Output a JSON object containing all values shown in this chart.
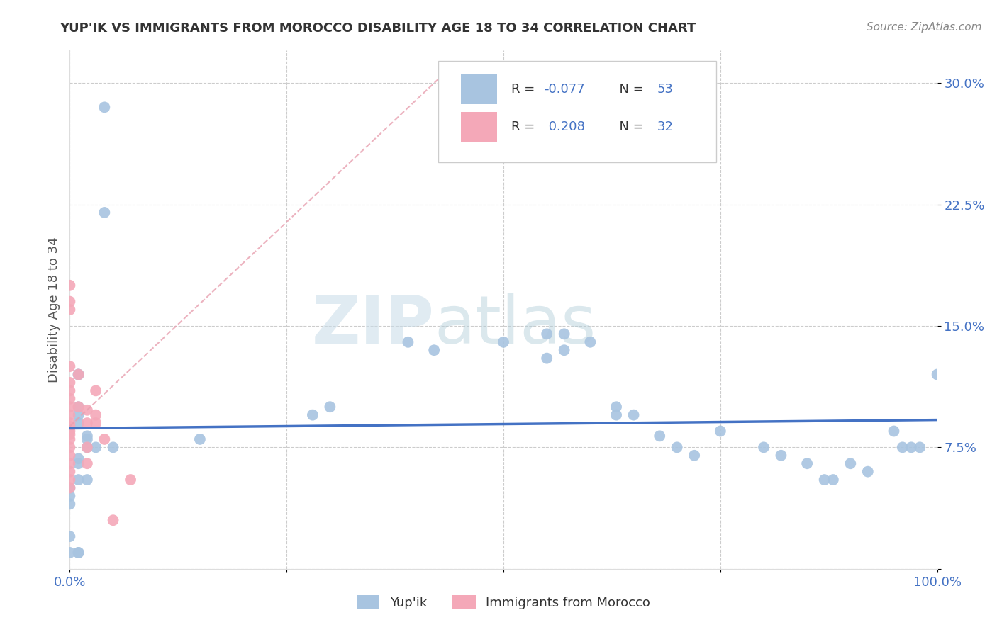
{
  "title": "YUP'IK VS IMMIGRANTS FROM MOROCCO DISABILITY AGE 18 TO 34 CORRELATION CHART",
  "source": "Source: ZipAtlas.com",
  "ylabel": "Disability Age 18 to 34",
  "xlim": [
    0.0,
    1.0
  ],
  "ylim": [
    0.0,
    0.32
  ],
  "xticks": [
    0.0,
    0.25,
    0.5,
    0.75,
    1.0
  ],
  "xtick_labels": [
    "0.0%",
    "",
    "",
    "",
    "100.0%"
  ],
  "ytick_labels": [
    "",
    "7.5%",
    "15.0%",
    "22.5%",
    "30.0%"
  ],
  "yticks": [
    0.0,
    0.075,
    0.15,
    0.225,
    0.3
  ],
  "grid_color": "#cccccc",
  "background_color": "#ffffff",
  "series1_color": "#a8c4e0",
  "series2_color": "#f4a8b8",
  "series1_label": "Yup'ik",
  "series2_label": "Immigrants from Morocco",
  "series1_R": "-0.077",
  "series1_N": "53",
  "series2_R": "0.208",
  "series2_N": "32",
  "label_color": "#4472c4",
  "trendline1_color": "#4472c4",
  "trendline2_color": "#e8a0b0",
  "watermark_color": "#d8e8f0",
  "series1_x": [
    0.04,
    0.04,
    0.01,
    0.01,
    0.01,
    0.01,
    0.01,
    0.02,
    0.02,
    0.03,
    0.05,
    0.15,
    0.02,
    0.01,
    0.01,
    0.01,
    0.02,
    0.0,
    0.0,
    0.0,
    0.0,
    0.0,
    0.01,
    0.01,
    0.39,
    0.42,
    0.5,
    0.55,
    0.57,
    0.6,
    0.63,
    0.65,
    0.68,
    0.7,
    0.72,
    0.75,
    0.8,
    0.82,
    0.85,
    0.87,
    0.9,
    0.92,
    0.95,
    0.97,
    0.98,
    1.0,
    0.55,
    0.57,
    0.28,
    0.3,
    0.63,
    0.88,
    0.96
  ],
  "series1_y": [
    0.285,
    0.22,
    0.12,
    0.12,
    0.1,
    0.095,
    0.09,
    0.082,
    0.08,
    0.075,
    0.075,
    0.08,
    0.075,
    0.068,
    0.065,
    0.055,
    0.055,
    0.05,
    0.045,
    0.04,
    0.02,
    0.01,
    0.01,
    0.01,
    0.14,
    0.135,
    0.14,
    0.145,
    0.135,
    0.14,
    0.1,
    0.095,
    0.082,
    0.075,
    0.07,
    0.085,
    0.075,
    0.07,
    0.065,
    0.055,
    0.065,
    0.06,
    0.085,
    0.075,
    0.075,
    0.12,
    0.13,
    0.145,
    0.095,
    0.1,
    0.095,
    0.055,
    0.075
  ],
  "series2_x": [
    0.0,
    0.0,
    0.0,
    0.0,
    0.0,
    0.0,
    0.0,
    0.0,
    0.0,
    0.0,
    0.0,
    0.0,
    0.0,
    0.0,
    0.0,
    0.0,
    0.0,
    0.0,
    0.0,
    0.0,
    0.01,
    0.01,
    0.02,
    0.02,
    0.03,
    0.03,
    0.03,
    0.04,
    0.05,
    0.07,
    0.02,
    0.02
  ],
  "series2_y": [
    0.175,
    0.165,
    0.16,
    0.125,
    0.115,
    0.11,
    0.105,
    0.1,
    0.095,
    0.09,
    0.088,
    0.085,
    0.083,
    0.08,
    0.075,
    0.07,
    0.065,
    0.06,
    0.055,
    0.05,
    0.12,
    0.1,
    0.098,
    0.09,
    0.11,
    0.095,
    0.09,
    0.08,
    0.03,
    0.055,
    0.075,
    0.065
  ]
}
